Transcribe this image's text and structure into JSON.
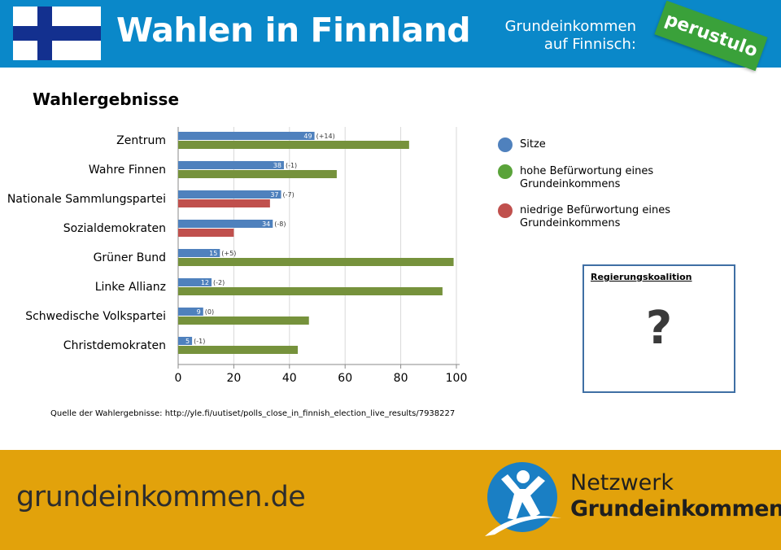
{
  "header": {
    "title": "Wahlen in Finnland",
    "sub_line1": "Grundeinkommen",
    "sub_line2": "auf Finnisch:",
    "stamp": "perustulo",
    "flag_colors": {
      "background": "#ffffff",
      "cross": "#13308f"
    },
    "bar_color": "#0a88c9"
  },
  "section_heading": "Wahlergebnisse",
  "chart_data": {
    "type": "bar",
    "orientation": "horizontal",
    "title": "Wahlergebnisse",
    "categories": [
      "Zentrum",
      "Wahre Finnen",
      "Nationale Sammlungspartei",
      "Sozialdemokraten",
      "Grüner Bund",
      "Linke Allianz",
      "Schwedische Volkspartei",
      "Christdemokraten"
    ],
    "series": [
      {
        "name": "Sitze",
        "color": "#4f81bd",
        "values": [
          49,
          38,
          37,
          34,
          15,
          12,
          9,
          5
        ]
      },
      {
        "name": "Befürwortung eines Grundeinkommens",
        "values": [
          83,
          57,
          33,
          20,
          99,
          95,
          47,
          43
        ]
      }
    ],
    "seat_changes": [
      "(+14)",
      "(-1)",
      "(-7)",
      "(-8)",
      "(+5)",
      "(-2)",
      "(0)",
      "(-1)"
    ],
    "support_level": [
      "hoch",
      "hoch",
      "niedrig",
      "niedrig",
      "hoch",
      "hoch",
      "hoch",
      "hoch"
    ],
    "colors": {
      "hoch": "#76923c",
      "niedrig": "#c0504d"
    },
    "xlim": [
      0,
      100
    ],
    "xticks": [
      0,
      20,
      40,
      60,
      80,
      100
    ],
    "legend": [
      {
        "label": "Sitze",
        "color": "#4f81bd"
      },
      {
        "label": "hohe Befürwortung eines Grundeinkommens",
        "color": "#5aa33a"
      },
      {
        "label": "niedrige Befürwortung eines Grundeinkommens",
        "color": "#c0504d"
      }
    ],
    "legend_position": "right"
  },
  "source": "Quelle der Wahlergebnisse: http://yle.fi/uutiset/polls_close_in_finnish_election_live_results/7938227",
  "coalition": {
    "title": "Regierungskoalition",
    "value": "?"
  },
  "footer": {
    "url": "grundeinkommen.de",
    "brand_line1": "Netzwerk",
    "brand_line2": "Grundeinkommen",
    "bar_color": "#e2a20b",
    "logo_color": "#1a7fc4"
  }
}
